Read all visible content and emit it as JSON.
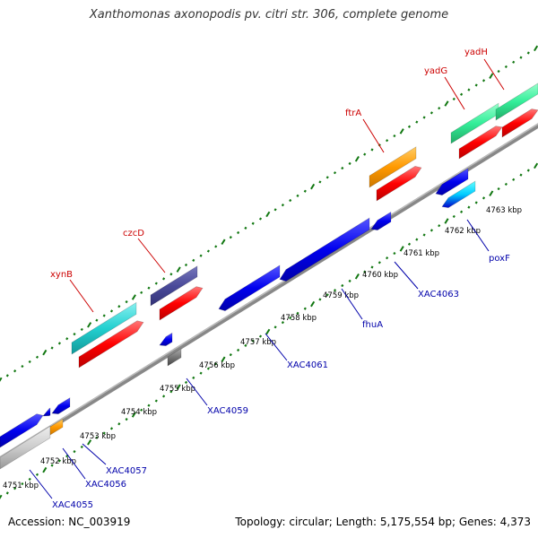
{
  "title": "Xanthomonas axonopodis pv. citri str. 306, complete genome",
  "footer": {
    "accession": "Accession: NC_003919",
    "summary": "Topology: circular; Length: 5,175,554 bp; Genes: 4,373"
  },
  "scale": {
    "ticks": [
      {
        "label": "4751 kbp"
      },
      {
        "label": "4752 kbp"
      },
      {
        "label": "4753 kbp"
      },
      {
        "label": "4754 kbp"
      },
      {
        "label": "4755 kbp"
      },
      {
        "label": "4756 kbp"
      },
      {
        "label": "4757 kbp"
      },
      {
        "label": "4758 kbp"
      },
      {
        "label": "4759 kbp"
      },
      {
        "label": "4760 kbp"
      },
      {
        "label": "4761 kbp"
      },
      {
        "label": "4762 kbp"
      },
      {
        "label": "4763 kbp"
      }
    ]
  },
  "gene_labels": {
    "top": [
      "xynB",
      "czcD",
      "ftrA",
      "yadG",
      "yadH"
    ],
    "bottom": [
      "XAC4055",
      "XAC4056",
      "XAC4057",
      "XAC4059",
      "XAC4061",
      "fhuA",
      "XAC4063",
      "poxF"
    ]
  },
  "colors": {
    "cds": "#ff0000",
    "feature_blue": "#0000ee",
    "feature_teal": "#22d0d0",
    "feature_slate": "#4a4a9a",
    "feature_orange": "#ff9900",
    "feature_mint": "#33ee99",
    "feature_gray": "#777777",
    "feature_light": "#cccccc",
    "backbone": "#888888",
    "ticks": "#117711"
  }
}
